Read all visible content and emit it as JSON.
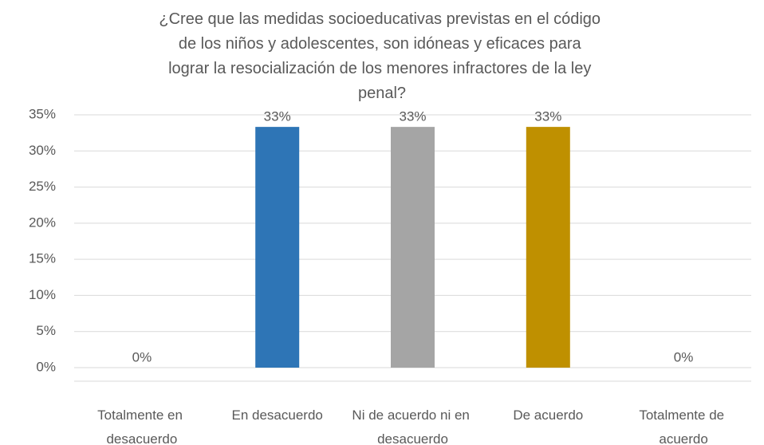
{
  "chart_data": {
    "type": "bar",
    "title": "¿Cree que las medidas socioeducativas previstas en el código de los niños y adolescentes, son idóneas y eficaces para lograr la resocialización de los menores infractores de la ley penal?",
    "categories": [
      "Totalmente en desacuerdo",
      "En desacuerdo",
      "Ni de acuerdo ni en desacuerdo",
      "De acuerdo",
      "Totalmente de acuerdo"
    ],
    "values": [
      0,
      33.33,
      33.33,
      33.33,
      0
    ],
    "value_labels": [
      "0%",
      "33%",
      "33%",
      "33%",
      "0%"
    ],
    "colors": [
      "#4472c4",
      "#2e75b6",
      "#a5a5a5",
      "#bf9000",
      "#5b9bd5"
    ],
    "ylim": [
      0,
      35
    ],
    "yticks": [
      {
        "value": 0,
        "label": "0%"
      },
      {
        "value": 5,
        "label": "5%"
      },
      {
        "value": 10,
        "label": "10%"
      },
      {
        "value": 15,
        "label": "15%"
      },
      {
        "value": 20,
        "label": "20%"
      },
      {
        "value": 25,
        "label": "25%"
      },
      {
        "value": 30,
        "label": "30%"
      },
      {
        "value": 35,
        "label": "35%"
      }
    ],
    "grid": true
  }
}
